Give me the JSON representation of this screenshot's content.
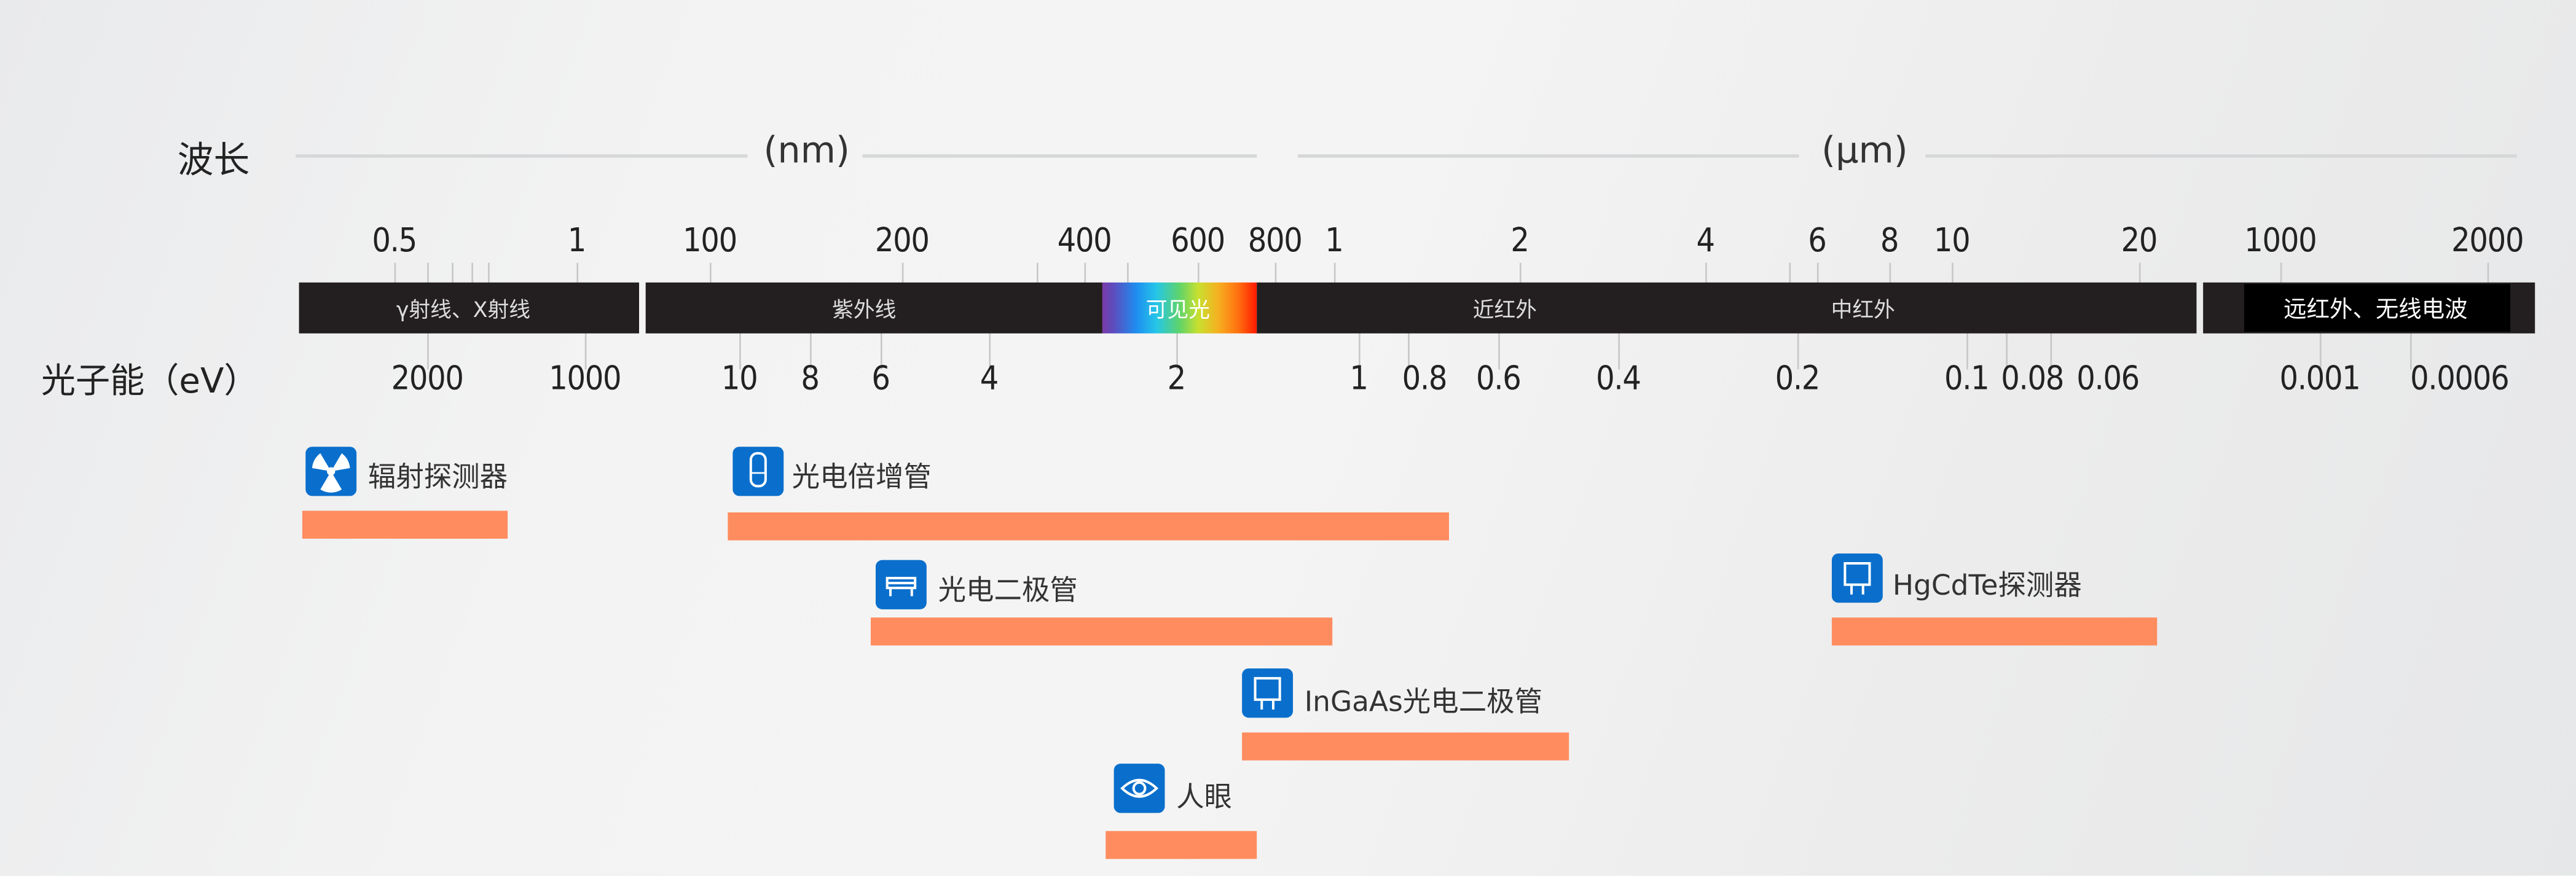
{
  "wavelength_label": "波长",
  "unit_nm": "(nm)",
  "unit_um": "(μm)",
  "energy_label": "光子能（eV）",
  "wavelength_ticks": [
    "0.5",
    "1",
    "100",
    "200",
    "400",
    "600",
    "800",
    "1",
    "2",
    "4",
    "6",
    "8",
    "10",
    "20",
    "1000",
    "2000"
  ],
  "energy_ticks": [
    "2000",
    "1000",
    "10",
    "8",
    "6",
    "4",
    "2",
    "1",
    "0.8",
    "0.6",
    "0.4",
    "0.2",
    "0.1",
    "0.08",
    "0.06",
    "0.001",
    "0.0006"
  ],
  "bands": {
    "xray": "γ射线、X射线",
    "uv": "紫外线",
    "visible": "可见光",
    "nir": "近红外",
    "mir": "中红外",
    "fir": "远红外、无线电波"
  },
  "detectors": [
    {
      "label": "辐射探测器",
      "icon": "radiation-icon"
    },
    {
      "label": "光电倍增管",
      "icon": "photomultiplier-tube-icon"
    },
    {
      "label": "光电二极管",
      "icon": "photodiode-icon"
    },
    {
      "label": "HgCdTe探测器",
      "icon": "hgcdte-detector-icon"
    },
    {
      "label": "InGaAs光电二极管",
      "icon": "ingaas-photodiode-icon"
    },
    {
      "label": "人眼",
      "icon": "eye-icon"
    }
  ],
  "colors": {
    "bar": "#231f20",
    "range_bar": "#ff8c5f",
    "icon": "#0a6fcc"
  }
}
